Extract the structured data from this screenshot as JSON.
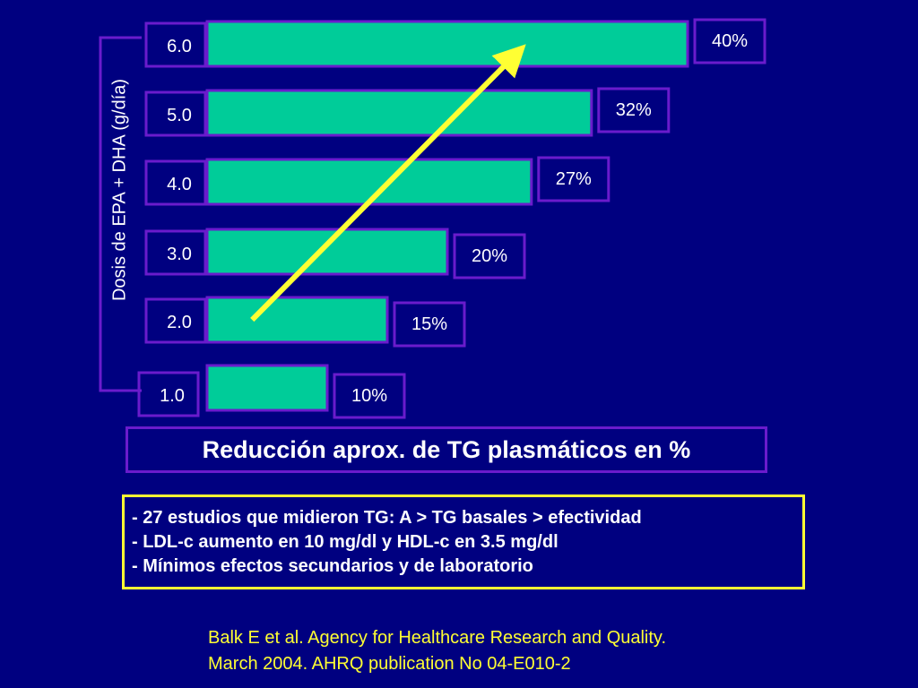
{
  "chart_data": {
    "type": "bar",
    "orientation": "horizontal",
    "categories": [
      "1.0",
      "2.0",
      "3.0",
      "4.0",
      "5.0",
      "6.0"
    ],
    "values": [
      10,
      15,
      20,
      27,
      32,
      40
    ],
    "value_labels": [
      "10%",
      "15%",
      "20%",
      "27%",
      "32%",
      "40%"
    ],
    "xlabel": "Reducción aprox. de TG plasmáticos en %",
    "ylabel": "Dosis de EPA + DHA (g/día)",
    "xlim": [
      0,
      40
    ],
    "grid": false,
    "colors": {
      "bar": "#00cc99",
      "frame": "#6a1bcc",
      "trend_arrow": "#ffff33",
      "background": "#000080"
    },
    "annotations": [
      "trend arrow"
    ]
  },
  "notes": [
    "- 27 estudios que midieron TG: A > TG basales > efectividad",
    "- LDL-c aumento en 10 mg/dl y HDL-c en 3.5 mg/dl",
    "- Mínimos efectos secundarios y de laboratorio"
  ],
  "source": {
    "line1": "Balk E et al. Agency for Healthcare Research and Quality.",
    "line2": "March 2004. AHRQ publication No 04-E010-2"
  }
}
